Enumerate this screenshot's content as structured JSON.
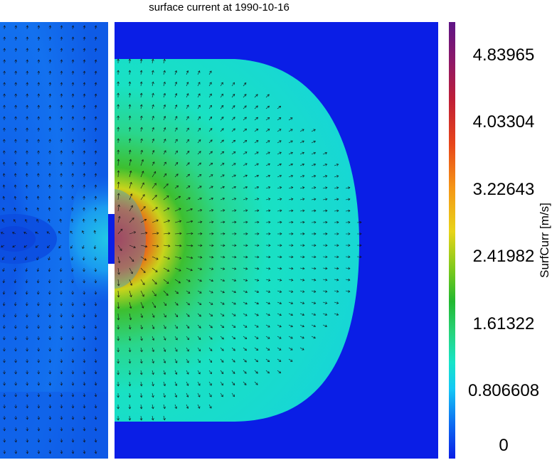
{
  "chart_data": {
    "type": "heatmap",
    "title": "surface current at 1990-10-16",
    "colorbar": {
      "label": "SurfCurr [m/s]",
      "min": 0,
      "max": 5.24,
      "ticks": [
        "0",
        "0.806608",
        "1.61322",
        "2.41982",
        "3.22643",
        "4.03304",
        "4.83965"
      ],
      "tick_values": [
        0,
        0.806608,
        1.61322,
        2.41982,
        3.22643,
        4.03304,
        4.83965
      ],
      "colors": [
        "#0a1ee6",
        "#14c8f5",
        "#27d37a",
        "#78c81c",
        "#f59616",
        "#c01f36",
        "#5e1586"
      ]
    },
    "field": {
      "description_of_values": "speed in m/s",
      "background_speed": 0.0,
      "far_field_speed": 0.45,
      "plume_speed": 1.2,
      "inlet_speed": 3.6
    },
    "vectors": true
  }
}
